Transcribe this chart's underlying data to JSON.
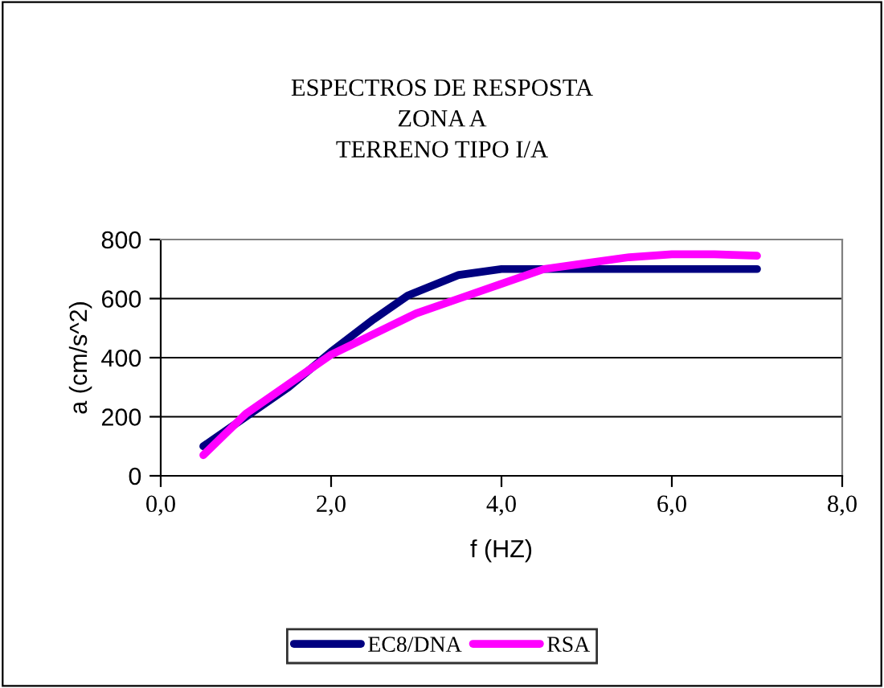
{
  "chart_data": {
    "type": "line",
    "title": "ESPECTROS DE RESPOSTA\nZONA A\nTERRENO TIPO I/A",
    "xlabel": "f (HZ)",
    "ylabel": "a (cm/s^2)",
    "xlim": [
      0,
      8
    ],
    "xticks": [
      {
        "value": 0,
        "label": "0,0"
      },
      {
        "value": 2,
        "label": "2,0"
      },
      {
        "value": 4,
        "label": "4,0"
      },
      {
        "value": 6,
        "label": "6,0"
      },
      {
        "value": 8,
        "label": "8,0"
      }
    ],
    "ylim": [
      0,
      800
    ],
    "yticks": [
      0,
      200,
      400,
      600,
      800
    ],
    "grid": "y",
    "legend": "bottom",
    "marker": "none",
    "line_style": "solid",
    "series": [
      {
        "name": "EC8/DNA",
        "color": "#000080",
        "x": [
          0.5,
          1,
          1.5,
          2,
          2.5,
          2.9,
          3.5,
          4,
          5,
          6,
          7
        ],
        "values": [
          100,
          200,
          300,
          420,
          530,
          610,
          680,
          700,
          700,
          700,
          700
        ]
      },
      {
        "name": "RSA",
        "color": "#ff00ff",
        "x": [
          0.5,
          1,
          1.5,
          2,
          2.5,
          3,
          3.5,
          4,
          4.5,
          5,
          5.5,
          6,
          6.5,
          7
        ],
        "values": [
          70,
          210,
          310,
          410,
          480,
          550,
          600,
          650,
          700,
          720,
          740,
          750,
          750,
          745
        ]
      }
    ]
  }
}
